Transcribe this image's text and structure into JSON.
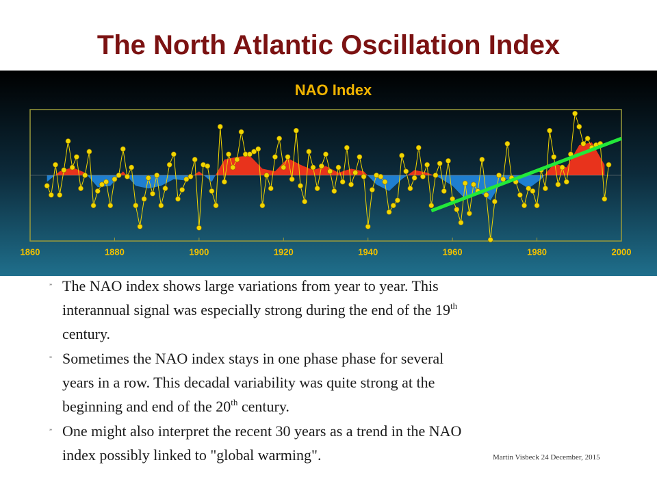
{
  "header": {
    "title": "The North Atlantic Oscillation Index"
  },
  "chart_data": {
    "type": "line",
    "title": "NAO Index",
    "xlim": [
      1860,
      2000
    ],
    "xticks": [
      1860,
      1880,
      1900,
      1920,
      1940,
      1960,
      1980,
      2000
    ],
    "ylim": [
      -5,
      5
    ],
    "series": [
      {
        "color": "#f2d600",
        "x": [
          1864,
          1865,
          1866,
          1867,
          1868,
          1869,
          1870,
          1871,
          1872,
          1873,
          1874,
          1875,
          1876,
          1877,
          1878,
          1879,
          1880,
          1881,
          1882,
          1883,
          1884,
          1885,
          1886,
          1887,
          1888,
          1889,
          1890,
          1891,
          1892,
          1893,
          1894,
          1895,
          1896,
          1897,
          1898,
          1899,
          1900,
          1901,
          1902,
          1903,
          1904,
          1905,
          1906,
          1907,
          1908,
          1909,
          1910,
          1911,
          1912,
          1913,
          1914,
          1915,
          1916,
          1917,
          1918,
          1919,
          1920,
          1921,
          1922,
          1923,
          1924,
          1925,
          1926,
          1927,
          1928,
          1929,
          1930,
          1931,
          1932,
          1933,
          1934,
          1935,
          1936,
          1937,
          1938,
          1939,
          1940,
          1941,
          1942,
          1943,
          1944,
          1945,
          1946,
          1947,
          1948,
          1949,
          1950,
          1951,
          1952,
          1953,
          1954,
          1955,
          1956,
          1957,
          1958,
          1959,
          1960,
          1961,
          1962,
          1963,
          1964,
          1965,
          1966,
          1967,
          1968,
          1969,
          1970,
          1971,
          1972,
          1973,
          1974,
          1975,
          1976,
          1977,
          1978,
          1979,
          1980,
          1981,
          1982,
          1983,
          1984,
          1985,
          1986,
          1987,
          1988,
          1989,
          1990,
          1991,
          1992,
          1993,
          1994,
          1995,
          1996,
          1997
        ],
        "values": [
          -0.8,
          -1.5,
          0.8,
          -1.5,
          0.4,
          2.6,
          0.6,
          1.4,
          -1.0,
          0,
          1.8,
          -2.3,
          -1.2,
          -0.7,
          -0.5,
          -2.3,
          -0.3,
          0,
          2.0,
          -0.1,
          0.6,
          -2.3,
          -3.9,
          -1.8,
          -0.2,
          -1.4,
          0,
          -2.3,
          -1.0,
          0.8,
          1.6,
          -1.8,
          -1.1,
          -0.3,
          -0.1,
          1.2,
          -4.0,
          0.8,
          0.7,
          -1.2,
          -2.3,
          3.7,
          -0.5,
          1.6,
          0.6,
          1.2,
          3.3,
          1.6,
          1.6,
          1.8,
          2.0,
          -2.3,
          0,
          -1.0,
          1.4,
          2.8,
          0.6,
          1.4,
          -0.3,
          3.4,
          -0.8,
          -2.0,
          1.8,
          0.6,
          -1.0,
          0.7,
          1.6,
          0.3,
          -1.2,
          0.6,
          -0.5,
          2.1,
          -0.7,
          0.2,
          1.4,
          -0.1,
          -3.9,
          -1.1,
          0,
          -0.1,
          -0.5,
          -2.8,
          -2.3,
          -1.9,
          1.5,
          0.3,
          -1.0,
          -0.2,
          2.1,
          -0.1,
          0.8,
          -2.3,
          0,
          0.9,
          -1.2,
          1.1,
          -1.8,
          -2.6,
          -3.6,
          -0.6,
          -2.9,
          -0.7,
          -1.2,
          1.2,
          -1.5,
          -4.9,
          -2.0,
          0,
          -0.3,
          2.4,
          -0.2,
          -0.5,
          -1.5,
          -2.3,
          -1.0,
          -1.2,
          -2.3,
          0.4,
          -1.0,
          3.4,
          1.4,
          -0.7,
          0.6,
          -0.5,
          1.6,
          4.7,
          3.7,
          2.4,
          2.8,
          2.1,
          2.3,
          2.4,
          -1.8,
          0.8
        ]
      },
      {
        "color_above": "#e8331c",
        "color_below": "#1f7fd0",
        "x": [
          1864,
          1867,
          1870,
          1873,
          1876,
          1879,
          1882,
          1885,
          1888,
          1891,
          1894,
          1897,
          1900,
          1903,
          1906,
          1909,
          1912,
          1915,
          1918,
          1921,
          1924,
          1927,
          1930,
          1933,
          1936,
          1939,
          1942,
          1945,
          1948,
          1951,
          1954,
          1957,
          1960,
          1963,
          1966,
          1969,
          1972,
          1975,
          1978,
          1981,
          1984,
          1987,
          1990,
          1993,
          1996
        ],
        "values": [
          -0.5,
          0.3,
          0.6,
          0.2,
          -0.9,
          -0.8,
          0.3,
          -0.8,
          -1.0,
          -0.8,
          -0.3,
          -0.4,
          0.3,
          -0.5,
          1.2,
          1.4,
          1.5,
          0.5,
          0.3,
          1.3,
          0.8,
          0.4,
          0.7,
          0.2,
          0.5,
          0.3,
          -0.7,
          -1.2,
          -0.3,
          0.4,
          0.2,
          -0.2,
          -0.8,
          -1.8,
          -1.2,
          -1.9,
          -0.3,
          -0.4,
          -1.0,
          -0.3,
          0.9,
          0.6,
          2.3,
          2.5,
          0.8
        ]
      }
    ],
    "trend": {
      "color": "#22e83a",
      "x": [
        1955,
        2000
      ],
      "values": [
        -2.7,
        2.8
      ]
    }
  },
  "bullets": [
    {
      "lines": [
        "The NAO index shows large variations from year to year. This",
        {
          "text": "interannual signal was especially strong during the end of the 19",
          "sup": "th"
        },
        "century."
      ]
    },
    {
      "lines": [
        "Sometimes the NAO index stays in one phase phase for several",
        "years in a row. This decadal variability was quite strong at the",
        {
          "text": "beginning and end of the 20",
          "sup": "th",
          "after": " century."
        }
      ]
    },
    {
      "lines": [
        "One might also interpret the recent 30 years as a trend in the NAO",
        "index possibly linked to \"global warming\"."
      ]
    }
  ],
  "footer": "Martin Visbeck 24 December, 2015"
}
